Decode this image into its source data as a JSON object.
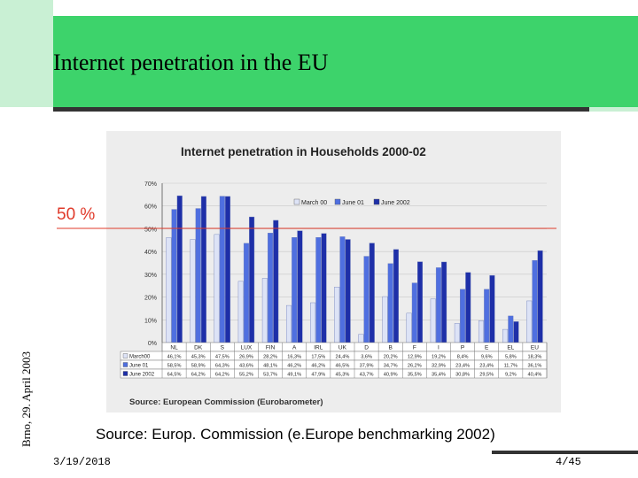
{
  "slide": {
    "title": "Internet penetration in the EU",
    "side_text": "Brno, 29. April 2003",
    "marker_label": "50 %",
    "source": "Source: Europ. Commission (e.Europe benchmarking 2002)",
    "footer_date": "3/19/2018",
    "footer_page": "4/45"
  },
  "colors": {
    "green_band": "#3dd36b",
    "pale_green": "#c9f0d4",
    "marker_red": "#e03a2a",
    "march00": "#dde3f6",
    "june01": "#4f6fe0",
    "june02": "#1e2fa8"
  },
  "chart_data": {
    "type": "bar",
    "title": "Internet penetration in Households 2000-02",
    "categories": [
      "NL",
      "DK",
      "S",
      "LUX",
      "FIN",
      "A",
      "IRL",
      "UK",
      "D",
      "B",
      "F",
      "I",
      "P",
      "E",
      "EL",
      "EU"
    ],
    "series": [
      {
        "name": "March 00",
        "values": [
          46.1,
          45.3,
          47.5,
          26.9,
          28.2,
          16.3,
          17.5,
          24.4,
          3.6,
          20.2,
          12.9,
          19.2,
          8.4,
          9.6,
          5.8,
          18.3
        ],
        "labels": [
          "46,1%",
          "45,3%",
          "47,5%",
          "26,9%",
          "28,2%",
          "16,3%",
          "17,5%",
          "24,4%",
          "3,6%",
          "20,2%",
          "12,9%",
          "19,2%",
          "8,4%",
          "9,6%",
          "5,8%",
          "18,3%"
        ]
      },
      {
        "name": "June 01",
        "values": [
          58.5,
          58.9,
          64.3,
          43.6,
          48.1,
          46.2,
          46.2,
          46.5,
          37.9,
          34.7,
          26.2,
          32.9,
          23.4,
          23.4,
          11.7,
          36.1
        ],
        "labels": [
          "58,5%",
          "58,9%",
          "64,3%",
          "43,6%",
          "48,1%",
          "46,2%",
          "46,2%",
          "46,5%",
          "37,9%",
          "34,7%",
          "26,2%",
          "32,9%",
          "23,4%",
          "23,4%",
          "11,7%",
          "36,1%"
        ]
      },
      {
        "name": "June 2002",
        "values": [
          64.5,
          64.2,
          64.2,
          55.2,
          53.7,
          49.1,
          47.9,
          45.3,
          43.7,
          40.9,
          35.5,
          35.4,
          30.8,
          29.5,
          9.2,
          40.4
        ],
        "labels": [
          "64,5%",
          "64,2%",
          "64,2%",
          "55,2%",
          "53,7%",
          "49,1%",
          "47,9%",
          "45,3%",
          "43,7%",
          "40,9%",
          "35,5%",
          "35,4%",
          "30,8%",
          "29,5%",
          "9,2%",
          "40,4%"
        ]
      }
    ],
    "table_headers": [
      "March00",
      "June 01",
      "June 2002"
    ],
    "y_ticks": [
      "0%",
      "10%",
      "20%",
      "30%",
      "40%",
      "50%",
      "60%",
      "70%"
    ],
    "ylim": [
      0,
      70
    ],
    "reference_line": 50,
    "legend": [
      "March 00",
      "June 01",
      "June 2002"
    ],
    "legend_position": "top-right",
    "source_note": "Source:   European Commission (Eurobarometer)"
  }
}
